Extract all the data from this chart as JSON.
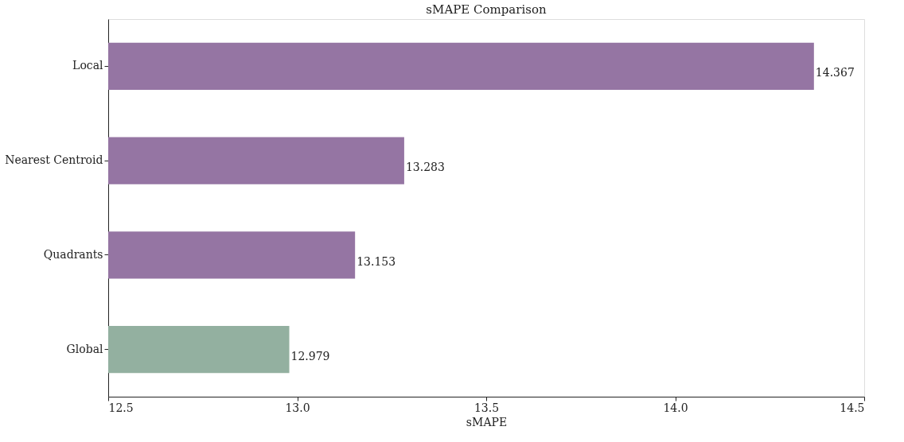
{
  "chart_data": {
    "type": "bar",
    "orientation": "horizontal",
    "title": "sMAPE Comparison",
    "xlabel": "sMAPE",
    "categories": [
      "Local",
      "Nearest Centroid",
      "Quadrants",
      "Global"
    ],
    "values": [
      14.367,
      13.283,
      13.153,
      12.979
    ],
    "colors": [
      "#9575a3",
      "#9575a3",
      "#9575a3",
      "#93b0a0"
    ],
    "xlim": [
      12.5,
      14.5
    ],
    "xticks": [
      12.5,
      {
        "value": 13.0,
        "label": "13.0"
      },
      13.5,
      {
        "value": 14.0,
        "label": "14.0"
      },
      14.5
    ],
    "data_labels": true
  }
}
